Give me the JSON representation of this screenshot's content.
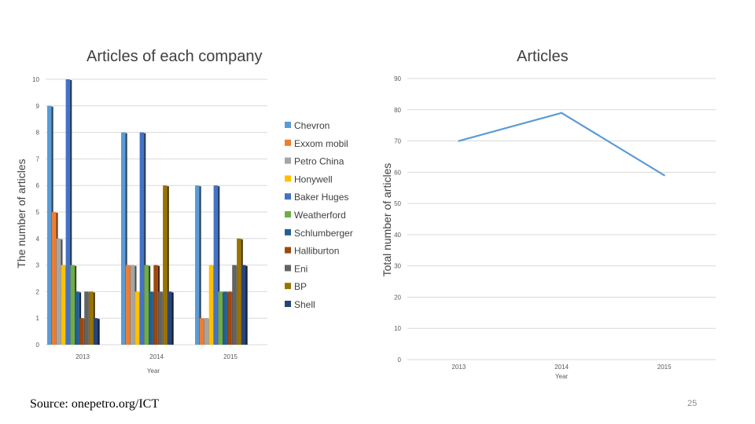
{
  "slide": {
    "source": "Source: onepetro.org/ICT",
    "page_number": "25"
  },
  "chart_data": [
    {
      "type": "bar",
      "title": "Articles of each company",
      "xlabel": "Year",
      "ylabel": "The number of articles",
      "categories": [
        "2013",
        "2014",
        "2015"
      ],
      "ylim": [
        0,
        10
      ],
      "yticks": [
        "0",
        "1",
        "2",
        "3",
        "4",
        "5",
        "6",
        "7",
        "8",
        "9",
        "10"
      ],
      "grid": true,
      "legend_position": "right",
      "series": [
        {
          "name": "Chevron",
          "color": "#5b9bd5",
          "values": [
            9,
            8,
            6
          ]
        },
        {
          "name": "Exxom mobil",
          "color": "#ed7d31",
          "values": [
            5,
            3,
            1
          ]
        },
        {
          "name": "Petro China",
          "color": "#a5a5a5",
          "values": [
            4,
            3,
            1
          ]
        },
        {
          "name": "Honywell",
          "color": "#ffc000",
          "values": [
            3,
            2,
            3
          ]
        },
        {
          "name": "Baker Huges",
          "color": "#4472c4",
          "values": [
            10,
            8,
            6
          ]
        },
        {
          "name": "Weatherford",
          "color": "#70ad47",
          "values": [
            3,
            3,
            2
          ]
        },
        {
          "name": "Schlumberger",
          "color": "#255e91",
          "values": [
            2,
            2,
            2
          ]
        },
        {
          "name": "Halliburton",
          "color": "#9e480e",
          "values": [
            1,
            3,
            2
          ]
        },
        {
          "name": "Eni",
          "color": "#636363",
          "values": [
            2,
            2,
            3
          ]
        },
        {
          "name": "BP",
          "color": "#997300",
          "values": [
            2,
            6,
            4
          ]
        },
        {
          "name": "Shell",
          "color": "#264478",
          "values": [
            1,
            2,
            3
          ]
        }
      ]
    },
    {
      "type": "line",
      "title": "Articles",
      "xlabel": "Year",
      "ylabel": "Total number of articles",
      "categories": [
        "2013",
        "2014",
        "2015"
      ],
      "ylim": [
        0,
        90
      ],
      "yticks": [
        "0",
        "10",
        "20",
        "30",
        "40",
        "50",
        "60",
        "70",
        "80",
        "90"
      ],
      "grid": true,
      "series": [
        {
          "color": "#5b9bd5",
          "values": [
            70,
            79,
            59
          ]
        }
      ]
    }
  ]
}
